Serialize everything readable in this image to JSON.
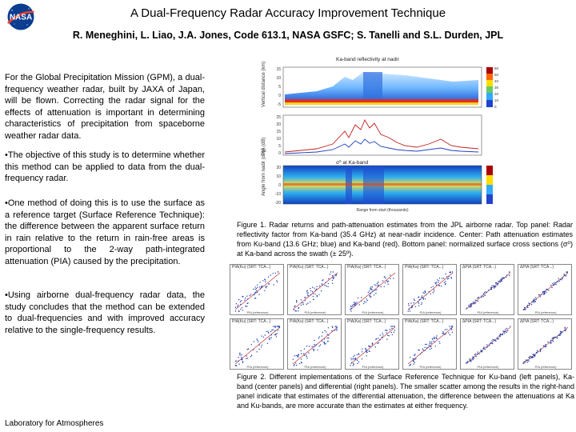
{
  "header": {
    "logo_text": "NASA",
    "title": "A Dual-Frequency Radar Accuracy Improvement Technique",
    "authors": "R. Meneghini, L. Liao, J.A. Jones, Code 613.1, NASA GSFC; S. Tanelli and S.L. Durden, JPL"
  },
  "body": {
    "paragraphs": [
      "For the Global Precipitation Mission (GPM), a dual-frequency weather radar, built by JAXA of Japan, will be flown. Correcting the radar signal for the effects of attenuation is important in determining characteristics of precipitation from spaceborne weather radar data.",
      "•The objective of this study is to determine whether this method can be applied to data from the dual-frequency radar.",
      "•One method of doing this is to use the surface as a reference target (Surface Reference Technique): the difference between the apparent surface return in rain relative to the return in rain-free areas is proportional to the 2-way path-integrated attenuation (PIA) caused by the precipitation.",
      "•Using airborne dual-frequency radar data, the study concludes that the method can be extended to dual-frequencies and with improved accuracy relative to the single-frequency results."
    ],
    "footer": "Laboratory for Atmospheres"
  },
  "figure1": {
    "title": "Ka-band reflectivity at nadir",
    "panel2_title": "σ⁰ at Ka-band",
    "ylabels": [
      "Vertical distance (km)",
      "PIA (dB)",
      "Angle from nadir (deg)"
    ],
    "top_ticks": [
      "15",
      "10",
      "5",
      "0",
      "-5"
    ],
    "mid_ticks": [
      "25",
      "20",
      "15",
      "10",
      "5",
      "0"
    ],
    "bot_ticks": [
      "20",
      "10",
      "0",
      "-10",
      "-20"
    ],
    "colorbar_ticks": [
      "60",
      "50",
      "40",
      "30",
      "20",
      "10",
      "0"
    ],
    "xlabel": "Range from start (thousands)",
    "caption": "Figure 1.  Radar returns and path-attenuation estimates from the JPL airborne radar.  Top panel: Radar reflectivity factor from Ka-band (35.4 GHz) at near-nadir incidence.  Center: Path attenuation estimates from Ku-band (13.6 GHz; blue) and Ka-band (red).  Bottom panel: normalized surface cross sections (σ⁰) at Ka-band across the swath (± 25º)."
  },
  "figure2": {
    "cell_titles": [
      "PIA(Ku) (SRT: TCA...)",
      "PIA(Ka) (SRT: TCA...)",
      "ΔPIA (SRT: TCA...)"
    ],
    "xlabel": "PIA (reference)",
    "caption": "Figure 2. Different implementations of the Surface Reference Technique for Ku-band (left panels), Ka-band (center panels) and differential (right panels).  The smaller scatter among the results in the right-hand panel indicate that estimates of the differential attenuation, the difference between the attenuations at Ka and Ku-bands, are more accurate than the estimates at either frequency."
  },
  "colors": {
    "nasa_blue": "#0b3d91",
    "nasa_red": "#fc3d21",
    "ku_line": "#2040c0",
    "ka_line": "#c02020"
  }
}
